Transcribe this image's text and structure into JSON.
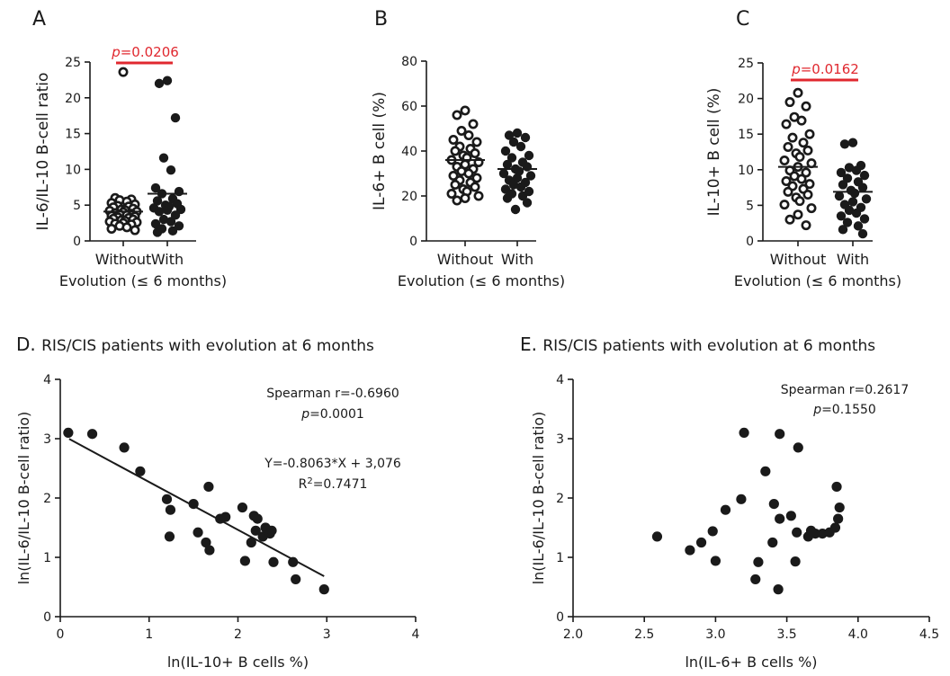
{
  "colors": {
    "ink": "#1a1a1a",
    "significance": "#e0282f"
  },
  "chart_data": [
    {
      "id": "A",
      "type": "scatter",
      "letter": "A",
      "ylabel": "IL-6/IL-10 B-cell ratio",
      "xlabel": "Evolution (≤ 6 months)",
      "categories": [
        "Without",
        "With"
      ],
      "ylim": [
        0,
        25
      ],
      "yticks": [
        0,
        5,
        10,
        15,
        20,
        25
      ],
      "significance": {
        "prefix": "p",
        "value": "=0.0206"
      },
      "series": [
        {
          "category": "Without",
          "marker": "open",
          "mean": 4.1,
          "values": [
            23.6,
            6.0,
            5.8,
            5.7,
            5.5,
            5.3,
            5.1,
            4.9,
            4.8,
            4.7,
            4.5,
            4.4,
            4.3,
            4.2,
            4.1,
            4.0,
            3.9,
            3.8,
            3.7,
            3.6,
            3.5,
            3.4,
            3.3,
            3.2,
            3.1,
            3.0,
            2.9,
            2.8,
            2.7,
            2.6,
            2.5,
            2.4,
            2.3,
            2.1,
            1.9,
            1.7,
            1.5
          ]
        },
        {
          "category": "With",
          "marker": "filled",
          "mean": 6.6,
          "values": [
            22.4,
            22.0,
            17.2,
            11.6,
            9.9,
            7.4,
            6.9,
            6.6,
            5.9,
            5.6,
            5.2,
            5.0,
            4.8,
            4.6,
            4.4,
            4.3,
            4.1,
            3.6,
            3.0,
            2.7,
            2.4,
            2.1,
            1.7,
            1.4,
            1.2
          ]
        }
      ]
    },
    {
      "id": "B",
      "type": "scatter",
      "letter": "B",
      "ylabel": "IL-6+ B cell (%)",
      "xlabel": "Evolution (≤ 6 months)",
      "categories": [
        "Without",
        "With"
      ],
      "ylim": [
        0,
        80
      ],
      "yticks": [
        0,
        20,
        40,
        60,
        80
      ],
      "series": [
        {
          "category": "Without",
          "marker": "open",
          "mean": 36,
          "values": [
            58,
            56,
            52,
            49,
            47,
            45,
            44,
            42,
            41,
            40,
            39,
            38,
            37,
            36,
            35,
            34,
            33,
            32,
            31,
            30,
            29,
            28,
            27,
            26,
            25,
            24,
            23,
            22,
            21,
            20,
            19,
            18
          ]
        },
        {
          "category": "With",
          "marker": "filled",
          "mean": 32,
          "values": [
            48,
            47,
            46,
            44,
            42,
            40,
            38,
            37,
            35,
            34,
            33,
            32,
            31,
            30,
            29,
            28,
            27,
            26,
            25,
            24,
            23,
            22,
            21,
            20,
            19,
            17,
            14
          ]
        }
      ]
    },
    {
      "id": "C",
      "type": "scatter",
      "letter": "C",
      "ylabel": "IL-10+ B cell (%)",
      "xlabel": "Evolution (≤ 6 months)",
      "categories": [
        "Without",
        "With"
      ],
      "ylim": [
        0,
        25
      ],
      "yticks": [
        0,
        5,
        10,
        15,
        20,
        25
      ],
      "significance": {
        "prefix": "p",
        "value": "=0.0162"
      },
      "series": [
        {
          "category": "Without",
          "marker": "open",
          "mean": 10.4,
          "values": [
            20.8,
            19.5,
            18.9,
            17.4,
            16.9,
            16.4,
            15.0,
            14.5,
            13.8,
            13.2,
            12.7,
            12.3,
            11.8,
            11.3,
            10.9,
            10.4,
            9.9,
            9.6,
            9.1,
            8.7,
            8.4,
            8.0,
            7.7,
            7.3,
            6.9,
            6.5,
            6.1,
            5.6,
            5.1,
            4.6,
            3.7,
            3.0,
            2.2
          ]
        },
        {
          "category": "With",
          "marker": "filled",
          "mean": 6.9,
          "values": [
            13.8,
            13.6,
            10.6,
            10.3,
            9.9,
            9.6,
            9.2,
            8.8,
            8.3,
            7.9,
            7.5,
            7.1,
            6.7,
            6.3,
            5.9,
            5.5,
            5.1,
            4.7,
            4.3,
            3.9,
            3.5,
            3.1,
            2.6,
            2.1,
            1.6,
            1.0
          ]
        }
      ]
    },
    {
      "id": "D",
      "type": "scatter",
      "letter": "D.",
      "title": "RIS/CIS patients with evolution at 6 months",
      "xlabel": "ln(IL-10+ B cells %)",
      "ylabel": "ln(IL-6/IL-10 B-cell ratio)",
      "xlim": [
        0,
        4
      ],
      "ylim": [
        0,
        4
      ],
      "xticks": [
        0,
        1,
        2,
        3,
        4
      ],
      "yticks": [
        0,
        1,
        2,
        3,
        4
      ],
      "xtick_labels": [
        "0",
        "1",
        "2",
        "3",
        "4"
      ],
      "stats": {
        "spearman": "Spearman r=-0.6960",
        "p_prefix": "p",
        "p_value": "=0.0001",
        "equation": "Y=-0.8063*X + 3,076",
        "r2_prefix": "R",
        "r2_sup": "2",
        "r2_value": "=0.7471"
      },
      "regression": {
        "slope": -0.8063,
        "intercept": 3.076,
        "x_range": [
          0.1,
          2.97
        ]
      },
      "points": [
        [
          0.09,
          3.1
        ],
        [
          0.36,
          3.08
        ],
        [
          0.72,
          2.85
        ],
        [
          0.9,
          2.45
        ],
        [
          1.2,
          1.98
        ],
        [
          1.24,
          1.8
        ],
        [
          1.23,
          1.35
        ],
        [
          1.5,
          1.9
        ],
        [
          1.55,
          1.42
        ],
        [
          1.64,
          1.25
        ],
        [
          1.67,
          2.19
        ],
        [
          1.68,
          1.12
        ],
        [
          1.8,
          1.65
        ],
        [
          1.86,
          1.68
        ],
        [
          2.05,
          1.84
        ],
        [
          2.08,
          0.94
        ],
        [
          2.15,
          1.25
        ],
        [
          2.18,
          1.7
        ],
        [
          2.2,
          1.45
        ],
        [
          2.22,
          1.65
        ],
        [
          2.28,
          1.35
        ],
        [
          2.31,
          1.5
        ],
        [
          2.36,
          1.4
        ],
        [
          2.38,
          1.45
        ],
        [
          2.4,
          0.92
        ],
        [
          2.62,
          0.92
        ],
        [
          2.65,
          0.63
        ],
        [
          2.97,
          0.46
        ]
      ]
    },
    {
      "id": "E",
      "type": "scatter",
      "letter": "E.",
      "title": "RIS/CIS patients with evolution at 6 months",
      "xlabel": "ln(IL-6+ B cells %)",
      "ylabel": "ln(IL-6/IL-10 B-cell ratio)",
      "xlim": [
        2.0,
        4.5
      ],
      "ylim": [
        0,
        4
      ],
      "xticks": [
        2.0,
        2.5,
        3.0,
        3.5,
        4.0,
        4.5
      ],
      "yticks": [
        0,
        1,
        2,
        3,
        4
      ],
      "xtick_labels": [
        "2.0",
        "2.5",
        "3.0",
        "3.5",
        "4.0",
        "4.5"
      ],
      "stats": {
        "spearman": "Spearman r=0.2617",
        "p_prefix": "p",
        "p_value": "=0.1550"
      },
      "points": [
        [
          2.59,
          1.35
        ],
        [
          2.82,
          1.12
        ],
        [
          2.9,
          1.25
        ],
        [
          2.98,
          1.44
        ],
        [
          3.0,
          0.94
        ],
        [
          3.07,
          1.8
        ],
        [
          3.18,
          1.98
        ],
        [
          3.2,
          3.1
        ],
        [
          3.28,
          0.63
        ],
        [
          3.3,
          0.92
        ],
        [
          3.35,
          2.45
        ],
        [
          3.4,
          1.25
        ],
        [
          3.41,
          1.9
        ],
        [
          3.44,
          0.46
        ],
        [
          3.45,
          3.08
        ],
        [
          3.45,
          1.65
        ],
        [
          3.53,
          1.7
        ],
        [
          3.56,
          0.93
        ],
        [
          3.57,
          1.42
        ],
        [
          3.58,
          2.85
        ],
        [
          3.65,
          1.35
        ],
        [
          3.67,
          1.45
        ],
        [
          3.7,
          1.4
        ],
        [
          3.75,
          1.4
        ],
        [
          3.8,
          1.42
        ],
        [
          3.84,
          1.5
        ],
        [
          3.85,
          2.19
        ],
        [
          3.86,
          1.65
        ],
        [
          3.87,
          1.84
        ]
      ]
    }
  ]
}
